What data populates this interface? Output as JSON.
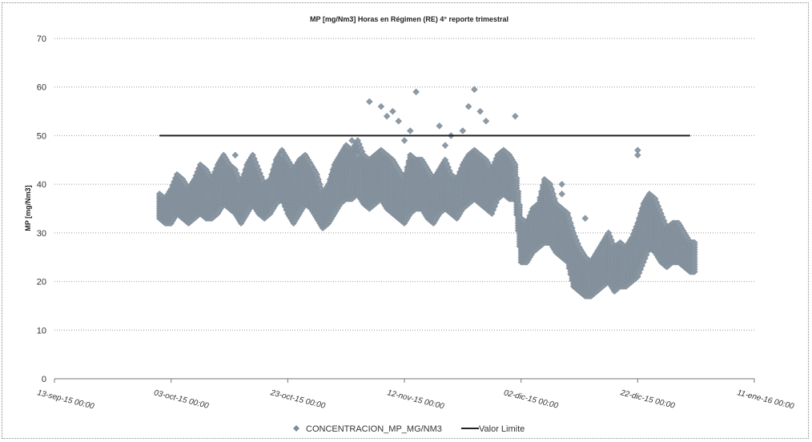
{
  "chart_data": {
    "type": "scatter",
    "title": "MP [mg/Nm3] Horas en Régimen (RE) 4° reporte trimestral",
    "ylabel": "MP [mg/Nm3]",
    "xlabel": "",
    "ylim": [
      0,
      70
    ],
    "yticks": [
      0,
      10,
      20,
      30,
      40,
      50,
      60,
      70
    ],
    "xlim": [
      "2015-09-13",
      "2016-01-11"
    ],
    "xticks": [
      "2015-09-13",
      "2015-10-03",
      "2015-10-23",
      "2015-11-12",
      "2015-12-02",
      "2015-12-22",
      "2016-01-11"
    ],
    "xtick_labels": [
      "13-sep-15 00:00",
      "03-oct-15 00:00",
      "23-oct-15 00:00",
      "12-nov-15 00:00",
      "02-dic-15 00:00",
      "22-dic-15 00:00",
      "11-ene-16 00:00"
    ],
    "grid": "horizontal dotted",
    "legend_position": "bottom",
    "series": [
      {
        "name": "CONCENTRACION_MP_MG/NM3",
        "kind": "scatter",
        "marker": "diamond",
        "color": "#8c9aa6",
        "x": [
          "2015-10-01",
          "2015-10-02",
          "2015-10-03",
          "2015-10-04",
          "2015-10-05",
          "2015-10-06",
          "2015-10-07",
          "2015-10-08",
          "2015-10-09",
          "2015-10-10",
          "2015-10-11",
          "2015-10-12",
          "2015-10-13",
          "2015-10-14",
          "2015-10-15",
          "2015-10-16",
          "2015-10-17",
          "2015-10-18",
          "2015-10-19",
          "2015-10-20",
          "2015-10-21",
          "2015-10-22",
          "2015-10-23",
          "2015-10-24",
          "2015-10-25",
          "2015-10-26",
          "2015-10-27",
          "2015-10-28",
          "2015-10-29",
          "2015-10-30",
          "2015-10-31",
          "2015-11-01",
          "2015-11-02",
          "2015-11-03",
          "2015-11-04",
          "2015-11-05",
          "2015-11-06",
          "2015-11-07",
          "2015-11-08",
          "2015-11-09",
          "2015-11-10",
          "2015-11-11",
          "2015-11-12",
          "2015-11-13",
          "2015-11-14",
          "2015-11-15",
          "2015-11-16",
          "2015-11-17",
          "2015-11-18",
          "2015-11-19",
          "2015-11-20",
          "2015-11-21",
          "2015-11-22",
          "2015-11-23",
          "2015-11-24",
          "2015-11-25",
          "2015-11-26",
          "2015-11-27",
          "2015-11-28",
          "2015-11-29",
          "2015-11-30",
          "2015-12-01",
          "2015-12-02",
          "2015-12-03",
          "2015-12-04",
          "2015-12-05",
          "2015-12-06",
          "2015-12-07",
          "2015-12-08",
          "2015-12-09",
          "2015-12-10",
          "2015-12-11",
          "2015-12-12",
          "2015-12-13",
          "2015-12-14",
          "2015-12-15",
          "2015-12-16",
          "2015-12-17",
          "2015-12-18",
          "2015-12-19",
          "2015-12-20",
          "2015-12-21",
          "2015-12-22",
          "2015-12-23",
          "2015-12-24",
          "2015-12-25",
          "2015-12-26",
          "2015-12-27",
          "2015-12-28",
          "2015-12-29",
          "2015-12-30",
          "2015-12-31"
        ],
        "y": [
          36,
          33,
          34,
          39,
          37,
          34,
          36,
          41,
          38,
          36,
          39,
          43,
          40,
          38,
          35,
          40,
          42,
          38,
          35,
          37,
          41,
          43,
          40,
          38,
          40,
          41,
          39,
          37,
          33,
          36,
          40,
          42,
          43,
          42,
          44,
          41,
          40,
          42,
          43,
          41,
          40,
          38,
          36,
          42,
          41,
          40,
          38,
          36,
          39,
          41,
          37,
          36,
          40,
          42,
          43,
          41,
          40,
          38,
          42,
          43,
          41,
          40,
          28,
          27,
          30,
          31,
          32,
          33,
          30,
          31,
          29,
          24,
          22,
          20,
          19,
          21,
          23,
          24,
          21,
          23,
          22,
          24,
          26,
          30,
          34,
          32,
          29,
          27,
          28,
          29,
          26,
          24
        ],
        "y_low": [
          33,
          32,
          32,
          34,
          33,
          32,
          33,
          34,
          33,
          33,
          34,
          36,
          35,
          34,
          32,
          34,
          36,
          34,
          33,
          34,
          36,
          37,
          34,
          32,
          34,
          36,
          35,
          33,
          31,
          32,
          34,
          36,
          37,
          37,
          38,
          36,
          35,
          36,
          37,
          35,
          34,
          33,
          32,
          34,
          35,
          35,
          33,
          32,
          34,
          35,
          34,
          33,
          35,
          36,
          37,
          36,
          35,
          34,
          37,
          38,
          37,
          37,
          24,
          24,
          26,
          27,
          28,
          28,
          26,
          25,
          24,
          19,
          18,
          17,
          17,
          18,
          19,
          20,
          18,
          19,
          19,
          20,
          21,
          24,
          27,
          26,
          24,
          23,
          24,
          24,
          23,
          22
        ],
        "y_high": [
          38,
          37,
          39,
          42,
          41,
          39,
          41,
          44,
          43,
          41,
          44,
          46,
          44,
          43,
          40,
          44,
          46,
          43,
          40,
          41,
          45,
          47,
          45,
          43,
          45,
          46,
          44,
          42,
          38,
          40,
          44,
          46,
          48,
          47,
          49,
          46,
          45,
          46,
          47,
          46,
          45,
          43,
          41,
          46,
          45,
          45,
          43,
          41,
          43,
          45,
          42,
          41,
          44,
          46,
          47,
          46,
          45,
          43,
          46,
          47,
          46,
          44,
          33,
          32,
          35,
          36,
          41,
          40,
          36,
          35,
          34,
          30,
          27,
          25,
          24,
          26,
          28,
          30,
          27,
          28,
          27,
          29,
          32,
          36,
          38,
          37,
          34,
          31,
          32,
          32,
          30,
          28
        ],
        "outliers": [
          {
            "x": "2015-11-06",
            "y": 57
          },
          {
            "x": "2015-11-08",
            "y": 56
          },
          {
            "x": "2015-11-09",
            "y": 54
          },
          {
            "x": "2015-11-10",
            "y": 55
          },
          {
            "x": "2015-11-11",
            "y": 53
          },
          {
            "x": "2015-11-14",
            "y": 59
          },
          {
            "x": "2015-11-13",
            "y": 51
          },
          {
            "x": "2015-11-12",
            "y": 49
          },
          {
            "x": "2015-11-18",
            "y": 52
          },
          {
            "x": "2015-11-19",
            "y": 48
          },
          {
            "x": "2015-11-20",
            "y": 50
          },
          {
            "x": "2015-11-22",
            "y": 51
          },
          {
            "x": "2015-11-23",
            "y": 56
          },
          {
            "x": "2015-11-24",
            "y": 59.5
          },
          {
            "x": "2015-11-25",
            "y": 55
          },
          {
            "x": "2015-11-26",
            "y": 53
          },
          {
            "x": "2015-12-01",
            "y": 54
          },
          {
            "x": "2015-11-04",
            "y": 46
          },
          {
            "x": "2015-11-03",
            "y": 49
          },
          {
            "x": "2015-10-14",
            "y": 46
          },
          {
            "x": "2015-10-22",
            "y": 46
          },
          {
            "x": "2015-10-27",
            "y": 44
          },
          {
            "x": "2015-12-09",
            "y": 40
          },
          {
            "x": "2015-12-09",
            "y": 38
          },
          {
            "x": "2015-12-13",
            "y": 33
          },
          {
            "x": "2015-12-22",
            "y": 47
          },
          {
            "x": "2015-12-22",
            "y": 46
          }
        ]
      },
      {
        "name": "Valor Limite",
        "kind": "line",
        "color": "#222222",
        "x": [
          "2015-10-01",
          "2015-12-31"
        ],
        "y": [
          50,
          50
        ]
      }
    ]
  }
}
